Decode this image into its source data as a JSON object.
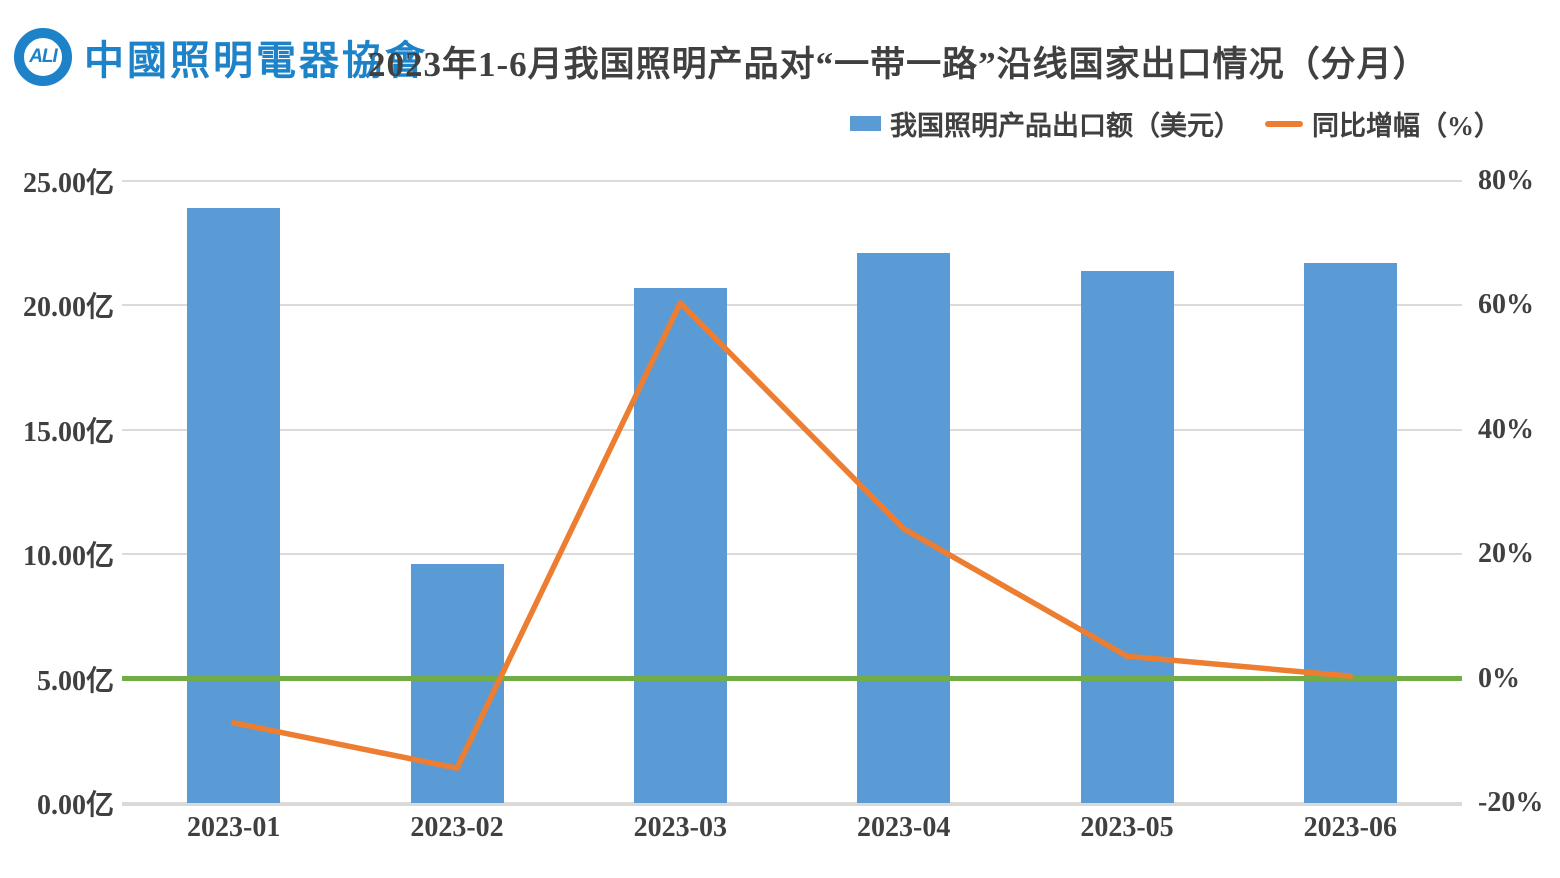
{
  "header": {
    "logo": {
      "abbr": "ALI",
      "org_name": "中國照明電器協會",
      "color": "#1E82C8"
    },
    "title": "2023年1-6月我国照明产品对“一带一路”沿线国家出口情况（分月）"
  },
  "legend": [
    {
      "label": "我国照明产品出口额（美元）",
      "type": "bar",
      "color": "#5B9BD5"
    },
    {
      "label": "同比增幅（%）",
      "type": "line",
      "color": "#ED7D31"
    }
  ],
  "chart_data": {
    "type": "bar",
    "subtype": "combo-bar-line-dual-axis",
    "title": "2023年1-6月我国照明产品对“一带一路”沿线国家出口情况（分月）",
    "categories": [
      "2023-01",
      "2023-02",
      "2023-03",
      "2023-04",
      "2023-05",
      "2023-06"
    ],
    "series": [
      {
        "name": "我国照明产品出口额（美元）",
        "type": "bar",
        "axis": "left",
        "unit": "亿美元",
        "color": "#5B9BD5",
        "values": [
          23.9,
          9.6,
          20.7,
          22.1,
          21.4,
          21.7
        ]
      },
      {
        "name": "同比增幅（%）",
        "type": "line",
        "axis": "right",
        "unit": "%",
        "color": "#ED7D31",
        "values": [
          -7.1,
          -14.4,
          60.4,
          24.1,
          3.6,
          0.4
        ]
      }
    ],
    "left_axis": {
      "min": 0,
      "max": 25,
      "tick_labels": [
        "25.00亿",
        "20.00亿",
        "15.00亿",
        "10.00亿",
        "5.00亿",
        "0.00亿"
      ]
    },
    "right_axis": {
      "min": -20,
      "max": 80,
      "tick_labels": [
        "80%",
        "60%",
        "40%",
        "20%",
        "0%",
        "-20%"
      ]
    },
    "zero_line": {
      "axis": "right",
      "value": 0,
      "color": "#70AD47"
    },
    "grid": true,
    "gridline_color": "#DBDBDB",
    "legend_position": "top-right",
    "xlabel": "",
    "ylabel": ""
  }
}
